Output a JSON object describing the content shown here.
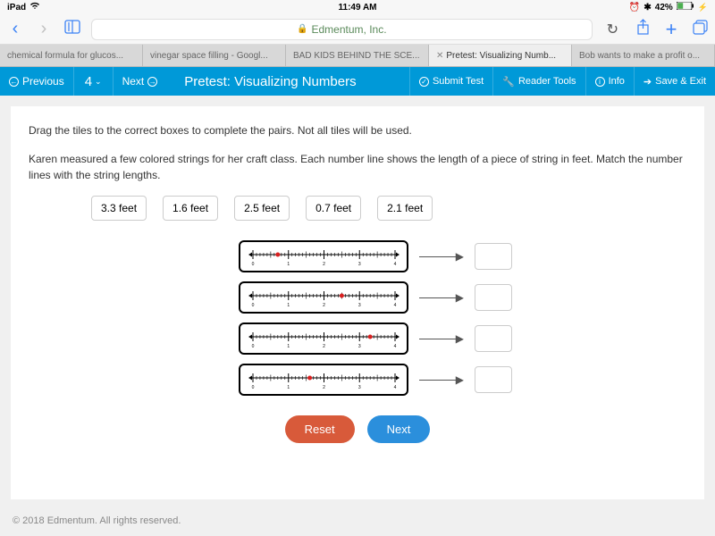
{
  "status": {
    "device": "iPad",
    "time": "11:49 AM",
    "battery": "42%"
  },
  "safari": {
    "url": "Edmentum, Inc."
  },
  "tabs": [
    {
      "label": "chemical formula for glucos..."
    },
    {
      "label": "vinegar space filling - Googl..."
    },
    {
      "label": "BAD KIDS BEHIND THE SCE..."
    },
    {
      "label": "Pretest: Visualizing Numb...",
      "active": true
    },
    {
      "label": "Bob wants to make a profit o..."
    }
  ],
  "appbar": {
    "previous": "Previous",
    "qnum": "4",
    "next": "Next",
    "title": "Pretest: Visualizing Numbers",
    "submit": "Submit Test",
    "tools": "Reader Tools",
    "info": "Info",
    "save": "Save & Exit"
  },
  "instructions": {
    "line1": "Drag the tiles to the correct boxes to complete the pairs. Not all tiles will be used.",
    "line2": "Karen measured a few colored strings for her craft class. Each number line shows the length of a piece of string in feet. Match the number lines with the string lengths."
  },
  "tiles": [
    "3.3 feet",
    "1.6 feet",
    "2.5 feet",
    "0.7 feet",
    "2.1 feet"
  ],
  "numberlines": {
    "range": [
      0,
      4
    ],
    "major_ticks": [
      0,
      1,
      2,
      3,
      4
    ],
    "minor_per_major": 10,
    "points": [
      0.7,
      2.5,
      3.3,
      1.6
    ],
    "point_color": "#d92020",
    "line_color": "#000000",
    "tick_labels": [
      "0",
      "1",
      "2",
      "3",
      "4"
    ]
  },
  "buttons": {
    "reset": "Reset",
    "next": "Next"
  },
  "colors": {
    "appbar_bg": "#0099d8",
    "reset_bg": "#d85a3a",
    "next_bg": "#2b8fdc",
    "safari_url": "#5a8a5a"
  },
  "footer": "© 2018 Edmentum. All rights reserved."
}
